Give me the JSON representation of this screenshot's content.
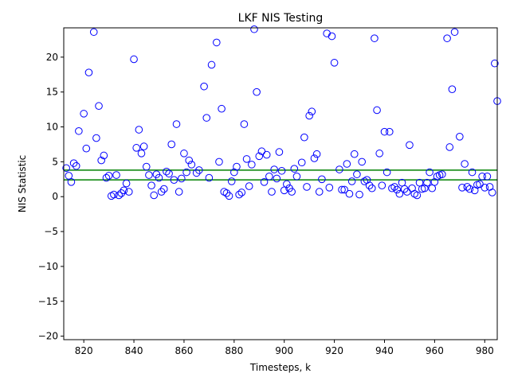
{
  "chart_data": {
    "type": "scatter",
    "title": "LKF NIS Testing",
    "xlabel": "Timesteps, k",
    "ylabel": "NIS Statistic",
    "xlim": [
      812,
      985
    ],
    "ylim": [
      -20.5,
      24.2
    ],
    "xticks": [
      820,
      840,
      860,
      880,
      900,
      920,
      940,
      960,
      980
    ],
    "yticks": [
      -20,
      -15,
      -10,
      -5,
      0,
      5,
      10,
      15,
      20
    ],
    "grid": false,
    "marker": "open-circle",
    "marker_color": "#0000ff",
    "bounds_color": "#008000",
    "bounds": [
      2.4,
      3.8
    ],
    "points": [
      [
        813,
        4.1
      ],
      [
        814,
        3.0
      ],
      [
        815,
        2.1
      ],
      [
        816,
        4.8
      ],
      [
        817,
        4.4
      ],
      [
        818,
        9.4
      ],
      [
        820,
        11.9
      ],
      [
        821,
        6.9
      ],
      [
        822,
        17.8
      ],
      [
        824,
        23.6
      ],
      [
        825,
        8.4
      ],
      [
        826,
        13.0
      ],
      [
        827,
        5.2
      ],
      [
        828,
        5.9
      ],
      [
        829,
        2.7
      ],
      [
        830,
        3.0
      ],
      [
        831,
        0.1
      ],
      [
        832,
        0.3
      ],
      [
        833,
        3.1
      ],
      [
        834,
        0.2
      ],
      [
        835,
        0.5
      ],
      [
        836,
        0.9
      ],
      [
        837,
        1.9
      ],
      [
        838,
        0.7
      ],
      [
        840,
        19.7
      ],
      [
        841,
        7.0
      ],
      [
        842,
        9.6
      ],
      [
        843,
        6.2
      ],
      [
        844,
        7.2
      ],
      [
        845,
        4.3
      ],
      [
        846,
        3.1
      ],
      [
        847,
        1.6
      ],
      [
        848,
        0.2
      ],
      [
        849,
        3.2
      ],
      [
        850,
        2.7
      ],
      [
        851,
        0.7
      ],
      [
        852,
        1.1
      ],
      [
        853,
        3.6
      ],
      [
        854,
        3.3
      ],
      [
        855,
        7.5
      ],
      [
        856,
        2.4
      ],
      [
        857,
        10.4
      ],
      [
        858,
        0.7
      ],
      [
        859,
        2.6
      ],
      [
        860,
        6.2
      ],
      [
        861,
        3.5
      ],
      [
        862,
        5.2
      ],
      [
        863,
        4.6
      ],
      [
        865,
        3.4
      ],
      [
        866,
        3.8
      ],
      [
        868,
        15.8
      ],
      [
        869,
        11.3
      ],
      [
        870,
        2.7
      ],
      [
        871,
        18.9
      ],
      [
        873,
        22.1
      ],
      [
        874,
        5.0
      ],
      [
        875,
        12.6
      ],
      [
        876,
        0.7
      ],
      [
        877,
        0.5
      ],
      [
        878,
        0.1
      ],
      [
        879,
        2.2
      ],
      [
        880,
        3.5
      ],
      [
        881,
        4.3
      ],
      [
        882,
        0.3
      ],
      [
        883,
        0.6
      ],
      [
        884,
        10.4
      ],
      [
        885,
        5.4
      ],
      [
        886,
        1.5
      ],
      [
        887,
        4.6
      ],
      [
        888,
        24.0
      ],
      [
        889,
        15.0
      ],
      [
        890,
        5.8
      ],
      [
        891,
        6.5
      ],
      [
        892,
        2.1
      ],
      [
        893,
        6.0
      ],
      [
        894,
        2.9
      ],
      [
        895,
        0.7
      ],
      [
        896,
        3.9
      ],
      [
        897,
        2.6
      ],
      [
        898,
        6.4
      ],
      [
        899,
        3.7
      ],
      [
        900,
        0.9
      ],
      [
        901,
        1.8
      ],
      [
        902,
        1.2
      ],
      [
        903,
        0.7
      ],
      [
        904,
        4.0
      ],
      [
        905,
        2.9
      ],
      [
        907,
        4.9
      ],
      [
        908,
        8.5
      ],
      [
        909,
        1.4
      ],
      [
        910,
        11.6
      ],
      [
        911,
        12.2
      ],
      [
        912,
        5.5
      ],
      [
        913,
        6.1
      ],
      [
        914,
        0.7
      ],
      [
        915,
        2.5
      ],
      [
        917,
        23.4
      ],
      [
        918,
        1.3
      ],
      [
        919,
        23.0
      ],
      [
        920,
        19.2
      ],
      [
        922,
        3.9
      ],
      [
        923,
        1.0
      ],
      [
        924,
        1.0
      ],
      [
        925,
        4.7
      ],
      [
        926,
        0.4
      ],
      [
        927,
        2.2
      ],
      [
        928,
        6.1
      ],
      [
        929,
        3.2
      ],
      [
        930,
        0.3
      ],
      [
        931,
        5.0
      ],
      [
        932,
        2.2
      ],
      [
        933,
        2.4
      ],
      [
        934,
        1.6
      ],
      [
        935,
        1.2
      ],
      [
        936,
        22.7
      ],
      [
        937,
        12.4
      ],
      [
        938,
        6.2
      ],
      [
        939,
        1.6
      ],
      [
        940,
        9.3
      ],
      [
        941,
        3.5
      ],
      [
        942,
        9.3
      ],
      [
        943,
        1.2
      ],
      [
        944,
        1.4
      ],
      [
        945,
        1.0
      ],
      [
        946,
        0.4
      ],
      [
        947,
        2.0
      ],
      [
        948,
        1.1
      ],
      [
        949,
        0.7
      ],
      [
        950,
        7.4
      ],
      [
        951,
        1.2
      ],
      [
        952,
        0.4
      ],
      [
        953,
        0.2
      ],
      [
        954,
        2.0
      ],
      [
        955,
        1.1
      ],
      [
        956,
        1.2
      ],
      [
        957,
        2.0
      ],
      [
        958,
        3.5
      ],
      [
        959,
        1.2
      ],
      [
        960,
        2.1
      ],
      [
        961,
        2.9
      ],
      [
        962,
        3.1
      ],
      [
        963,
        3.2
      ],
      [
        965,
        22.7
      ],
      [
        966,
        7.1
      ],
      [
        967,
        15.4
      ],
      [
        968,
        23.6
      ],
      [
        970,
        8.6
      ],
      [
        971,
        1.3
      ],
      [
        972,
        4.7
      ],
      [
        973,
        1.4
      ],
      [
        974,
        1.1
      ],
      [
        975,
        3.5
      ],
      [
        976,
        0.9
      ],
      [
        977,
        1.7
      ],
      [
        978,
        1.8
      ],
      [
        979,
        2.9
      ],
      [
        980,
        1.3
      ],
      [
        981,
        2.9
      ],
      [
        982,
        1.4
      ],
      [
        983,
        0.6
      ],
      [
        984,
        19.1
      ],
      [
        985,
        13.7
      ]
    ]
  }
}
